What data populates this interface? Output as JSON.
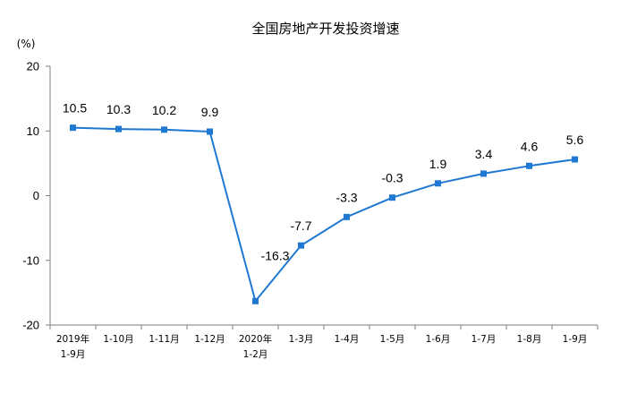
{
  "chart_data": {
    "type": "line",
    "title": "全国房地产开发投资增速",
    "ylabel": "(%)",
    "xlabel": "",
    "ylim": [
      -20,
      20
    ],
    "yticks": [
      20,
      10,
      0,
      -10,
      -20
    ],
    "grid": false,
    "legend": "none",
    "categories": [
      [
        "2019年",
        "1-9月"
      ],
      [
        "1-10月"
      ],
      [
        "1-11月"
      ],
      [
        "1-12月"
      ],
      [
        "2020年",
        "1-2月"
      ],
      [
        "1-3月"
      ],
      [
        "1-4月"
      ],
      [
        "1-5月"
      ],
      [
        "1-6月"
      ],
      [
        "1-7月"
      ],
      [
        "1-8月"
      ],
      [
        "1-9月"
      ]
    ],
    "series": [
      {
        "values": [
          10.5,
          10.3,
          10.2,
          9.9,
          -16.3,
          -7.7,
          -3.3,
          -0.3,
          1.9,
          3.4,
          4.6,
          5.6
        ],
        "labels": [
          "10.5",
          "10.3",
          "10.2",
          "9.9",
          "-16.3",
          "-7.7",
          "-3.3",
          "-0.3",
          "1.9",
          "3.4",
          "4.6",
          "5.6"
        ],
        "color": "#1F78D1"
      }
    ]
  }
}
